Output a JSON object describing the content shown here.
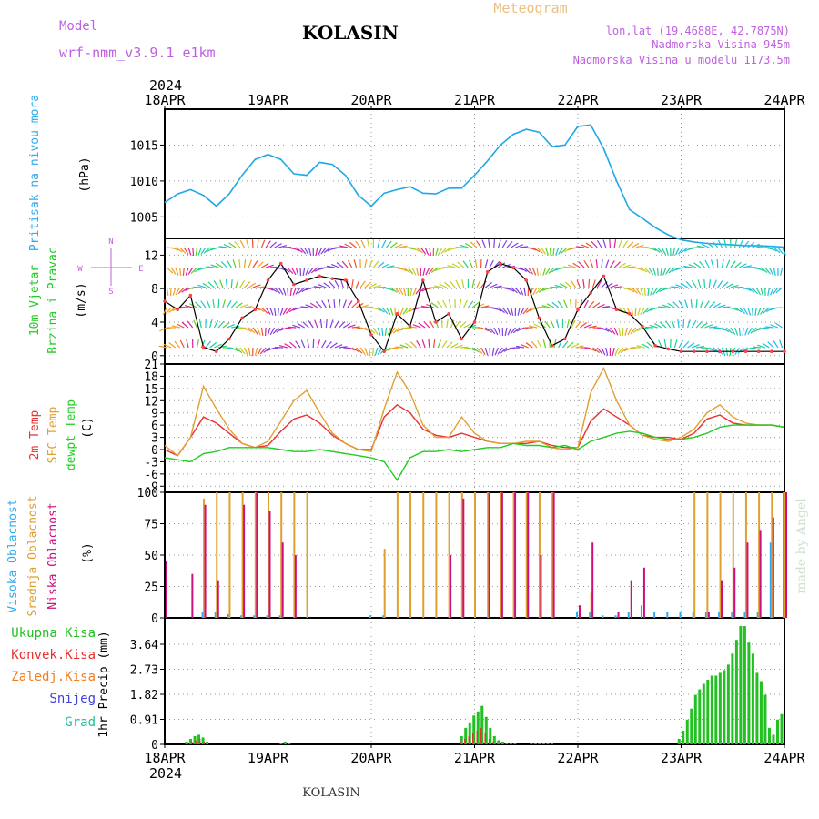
{
  "header": {
    "model_label": "Model",
    "model_name": "wrf-nmm_v3.9.1 e1km",
    "station": "KOLASIN",
    "chart_kind": "Meteogram",
    "lonlat": "lon,lat (19.4688E, 42.7875N)",
    "elevation": "Nadmorska Visina 945m",
    "model_elevation": "Nadmorska Visina u modelu 1173.5m",
    "year": "2024",
    "footer_station": "KOLASIN",
    "credit": "made by Angel"
  },
  "colors": {
    "pressure": "#1ea8e8",
    "temp2m": "#e83030",
    "sfc_temp": "#e0a030",
    "dewpt": "#22cc22",
    "high_cloud": "#2eaaee",
    "mid_cloud": "#e0a030",
    "low_cloud": "#cc1080",
    "total_precip": "#22c022",
    "conv_precip": "#e83030",
    "frozen_precip": "#f08020",
    "snow": "#4040e0",
    "hail": "#20c0a0",
    "model_label": "#c060e0",
    "axis_title_pressure": "#2eaaee",
    "axis_title_wind": "#22cc22"
  },
  "chart_data": [
    {
      "type": "line",
      "panel": "pressure",
      "ylabel": "Pritisak na nivou mora",
      "unit": "(hPa)",
      "yticks": [
        1005,
        1010,
        1015
      ],
      "ylim": [
        1002,
        1020
      ],
      "x_start": "2024-04-18 00:00",
      "x_ticks": [
        "18APR",
        "19APR",
        "20APR",
        "21APR",
        "22APR",
        "23APR",
        "24APR"
      ],
      "x_hours": [
        0,
        3,
        6,
        9,
        12,
        15,
        18,
        21,
        24,
        27,
        30,
        33,
        36,
        39,
        42,
        45,
        48,
        51,
        54,
        57,
        60,
        63,
        66,
        69,
        72,
        75,
        78,
        81,
        84,
        87,
        90,
        93,
        96,
        99,
        102,
        105,
        108,
        111,
        114,
        117,
        120,
        123,
        126,
        129,
        132,
        135,
        138,
        141,
        144
      ],
      "series": [
        {
          "values": [
            1007,
            1008.2,
            1008.8,
            1008,
            1006.5,
            1008.2,
            1010.8,
            1013,
            1013.7,
            1013,
            1011,
            1010.8,
            1012.6,
            1012.3,
            1010.8,
            1008,
            1006.5,
            1008.3,
            1008.8,
            1009.2,
            1008.3,
            1008.2,
            1009,
            1009,
            1010.8,
            1012.8,
            1015,
            1016.5,
            1017.2,
            1016.8,
            1014.8,
            1015,
            1017.6,
            1017.8,
            1014.5,
            1010,
            1006,
            1004.8,
            1003.5,
            1002.5,
            1001.8,
            1001.5,
            1001.3,
            1001.2,
            1001.1,
            1001,
            1001,
            1000.9,
            1000.8
          ]
        }
      ]
    },
    {
      "type": "line",
      "panel": "wind",
      "ylabel": "10m Vjetar Brzina i Pravac",
      "unit": "(m/s)",
      "compass": [
        "N",
        "S",
        "E",
        "W"
      ],
      "yticks": [
        0,
        4,
        8,
        12
      ],
      "ylim": [
        -1,
        14
      ],
      "series": [
        {
          "values": [
            6.5,
            5.5,
            7.2,
            1,
            0.5,
            2,
            4.5,
            5.5,
            9,
            11,
            8.5,
            9,
            9.5,
            9.2,
            9,
            6.5,
            2.5,
            0.5,
            5,
            3.5,
            9,
            4,
            5,
            2,
            4,
            10,
            11,
            10.5,
            9,
            4.5,
            1.2,
            2,
            5.5,
            7.5,
            9.5,
            5.5,
            5,
            3.5,
            1.2,
            0.8,
            0.5,
            0.5,
            0.5,
            0.5,
            0.5,
            0.5,
            0.5,
            0.5,
            0.5
          ]
        }
      ]
    },
    {
      "type": "line",
      "panel": "temperature",
      "ylabel": "2m Temp / SFC Temp / dewpt Temp",
      "unit": "(C)",
      "yticks": [
        -9,
        -6,
        -3,
        0,
        3,
        6,
        9,
        12,
        15,
        18,
        21
      ],
      "ylim": [
        -10.5,
        21
      ],
      "series": [
        {
          "name": "2m Temp",
          "values": [
            0,
            -1.5,
            3,
            8,
            6.5,
            4,
            1.5,
            0.5,
            1,
            4.5,
            7.5,
            8.5,
            6.5,
            3.5,
            1.5,
            0,
            0,
            8,
            11,
            9,
            5,
            3.5,
            3,
            4,
            3,
            2,
            1.5,
            1.5,
            1.5,
            2,
            1,
            0.5,
            0.5,
            7,
            10,
            8,
            6,
            3.5,
            3,
            3,
            2.5,
            4,
            7.5,
            8.5,
            6.5,
            6,
            6,
            6,
            5.5
          ]
        },
        {
          "name": "SFC Temp",
          "values": [
            1,
            -1.5,
            3,
            15.5,
            10,
            5,
            1.5,
            0.5,
            2,
            7,
            12,
            14.5,
            9,
            4,
            1.5,
            0,
            -0.5,
            10,
            19,
            14,
            6,
            3,
            3,
            8,
            4,
            2,
            1.5,
            1.5,
            2,
            2,
            0.5,
            0,
            0.5,
            14,
            20,
            12,
            6,
            3.5,
            2.5,
            2,
            3,
            5,
            9,
            11,
            8,
            6.5,
            6,
            6,
            5.5
          ]
        },
        {
          "name": "dewpt Temp",
          "values": [
            -2,
            -2.5,
            -3,
            -1,
            -0.5,
            0.5,
            0.5,
            0.5,
            0.5,
            0,
            -0.5,
            -0.5,
            0,
            -0.5,
            -1,
            -1.5,
            -2,
            -3,
            -7.5,
            -2,
            -0.5,
            -0.5,
            0,
            -0.5,
            0,
            0.5,
            0.5,
            1.5,
            1,
            1,
            0.5,
            1,
            0,
            2,
            3,
            4,
            4.5,
            4,
            3,
            2.5,
            2.5,
            3,
            4,
            5.5,
            6,
            6,
            6,
            6,
            5.5
          ]
        }
      ]
    },
    {
      "type": "bar",
      "panel": "clouds",
      "ylabel": "Visoka Oblacnost / Srednja Oblacnost / Niska Oblacnost",
      "unit": "(%)",
      "yticks": [
        0,
        25,
        50,
        75,
        100
      ],
      "ylim": [
        0,
        100
      ],
      "series": [
        {
          "name": "Visoka Oblacnost",
          "values": [
            0,
            0,
            0,
            5,
            5,
            3,
            2,
            2,
            2,
            2,
            0,
            0,
            0,
            0,
            0,
            0,
            2,
            2,
            0,
            0,
            0,
            0,
            0,
            0,
            0,
            0,
            0,
            0,
            0,
            0,
            0,
            0,
            5,
            5,
            2,
            2,
            5,
            10,
            5,
            5,
            5,
            5,
            5,
            5,
            5,
            5,
            5,
            60,
            100
          ]
        },
        {
          "name": "Srednja Oblacnost",
          "values": [
            0,
            0,
            0,
            95,
            100,
            100,
            100,
            100,
            100,
            100,
            100,
            100,
            0,
            0,
            0,
            0,
            0,
            55,
            100,
            100,
            100,
            100,
            100,
            100,
            100,
            100,
            100,
            100,
            100,
            100,
            100,
            0,
            0,
            20,
            0,
            0,
            0,
            0,
            0,
            0,
            0,
            100,
            100,
            100,
            100,
            100,
            100,
            100,
            100
          ]
        },
        {
          "name": "Niska Oblacnost",
          "values": [
            45,
            0,
            35,
            90,
            30,
            0,
            90,
            100,
            85,
            60,
            50,
            0,
            0,
            0,
            0,
            0,
            0,
            0,
            0,
            0,
            0,
            0,
            50,
            95,
            0,
            100,
            100,
            100,
            100,
            50,
            100,
            0,
            10,
            60,
            0,
            5,
            30,
            40,
            0,
            0,
            0,
            0,
            5,
            30,
            40,
            60,
            70,
            80,
            100
          ]
        }
      ]
    },
    {
      "type": "bar",
      "panel": "precipitation",
      "ylabel": "1hr Precip",
      "unit": "(mm)",
      "yticks": [
        0,
        0.91,
        1.82,
        2.73,
        3.64
      ],
      "ylim": [
        0,
        4.6
      ],
      "legend": [
        "Ukupna Kisa",
        "Konvek.Kisa",
        "Zaledj.Kisa",
        "Snijeg",
        "Grad"
      ],
      "series": [
        {
          "name": "Ukupna Kisa",
          "values": [
            0,
            0,
            0,
            0,
            0,
            0.1,
            0.2,
            0.3,
            0.35,
            0.25,
            0.1,
            0,
            0,
            0,
            0,
            0,
            0,
            0,
            0,
            0,
            0,
            0,
            0,
            0,
            0,
            0,
            0,
            0,
            0.05,
            0.1,
            0.05,
            0,
            0,
            0,
            0,
            0,
            0,
            0,
            0,
            0,
            0,
            0,
            0,
            0,
            0,
            0,
            0,
            0,
            0,
            0,
            0,
            0,
            0,
            0,
            0,
            0,
            0,
            0,
            0,
            0,
            0,
            0,
            0,
            0,
            0,
            0,
            0,
            0,
            0,
            0,
            0,
            0,
            0.3,
            0.6,
            0.8,
            1.05,
            1.2,
            1.4,
            1.0,
            0.6,
            0.3,
            0.15,
            0.1,
            0.05,
            0.05,
            0.05,
            0,
            0,
            0,
            0.05,
            0.05,
            0.05,
            0.05,
            0.05,
            0.05,
            0,
            0,
            0,
            0,
            0,
            0,
            0,
            0,
            0,
            0,
            0,
            0,
            0,
            0,
            0,
            0,
            0,
            0,
            0,
            0,
            0,
            0,
            0,
            0,
            0,
            0,
            0,
            0,
            0,
            0,
            0.2,
            0.5,
            0.9,
            1.3,
            1.8,
            2.0,
            2.2,
            2.35,
            2.5,
            2.5,
            2.6,
            2.7,
            2.9,
            3.3,
            3.8,
            4.3,
            4.3,
            3.7,
            3.3,
            2.6,
            2.3,
            1.8,
            0.6,
            0.35,
            0.9,
            1.1
          ]
        },
        {
          "name": "Konvek.Kisa",
          "values": [
            0,
            0,
            0,
            0,
            0,
            0.05,
            0.1,
            0.15,
            0.2,
            0.1,
            0,
            0,
            0,
            0,
            0,
            0,
            0,
            0,
            0,
            0,
            0,
            0,
            0,
            0,
            0,
            0,
            0,
            0,
            0,
            0,
            0,
            0,
            0,
            0,
            0,
            0,
            0,
            0,
            0,
            0,
            0,
            0,
            0,
            0,
            0,
            0,
            0,
            0,
            0,
            0,
            0,
            0,
            0,
            0,
            0,
            0,
            0,
            0,
            0,
            0,
            0,
            0,
            0,
            0,
            0,
            0,
            0,
            0,
            0,
            0,
            0,
            0,
            0.1,
            0.2,
            0.3,
            0.4,
            0.5,
            0.6,
            0.4,
            0.2,
            0.1,
            0,
            0,
            0,
            0,
            0,
            0,
            0,
            0,
            0,
            0,
            0,
            0,
            0,
            0,
            0,
            0,
            0,
            0,
            0,
            0,
            0,
            0,
            0,
            0,
            0,
            0,
            0,
            0,
            0,
            0,
            0,
            0,
            0,
            0,
            0,
            0,
            0,
            0,
            0,
            0,
            0,
            0,
            0,
            0,
            0,
            0,
            0,
            0,
            0,
            0,
            0,
            0,
            0,
            0,
            0,
            0,
            0,
            0,
            0,
            0,
            0,
            0,
            0,
            0,
            0,
            0,
            0,
            0,
            0,
            0,
            0
          ]
        }
      ]
    }
  ]
}
